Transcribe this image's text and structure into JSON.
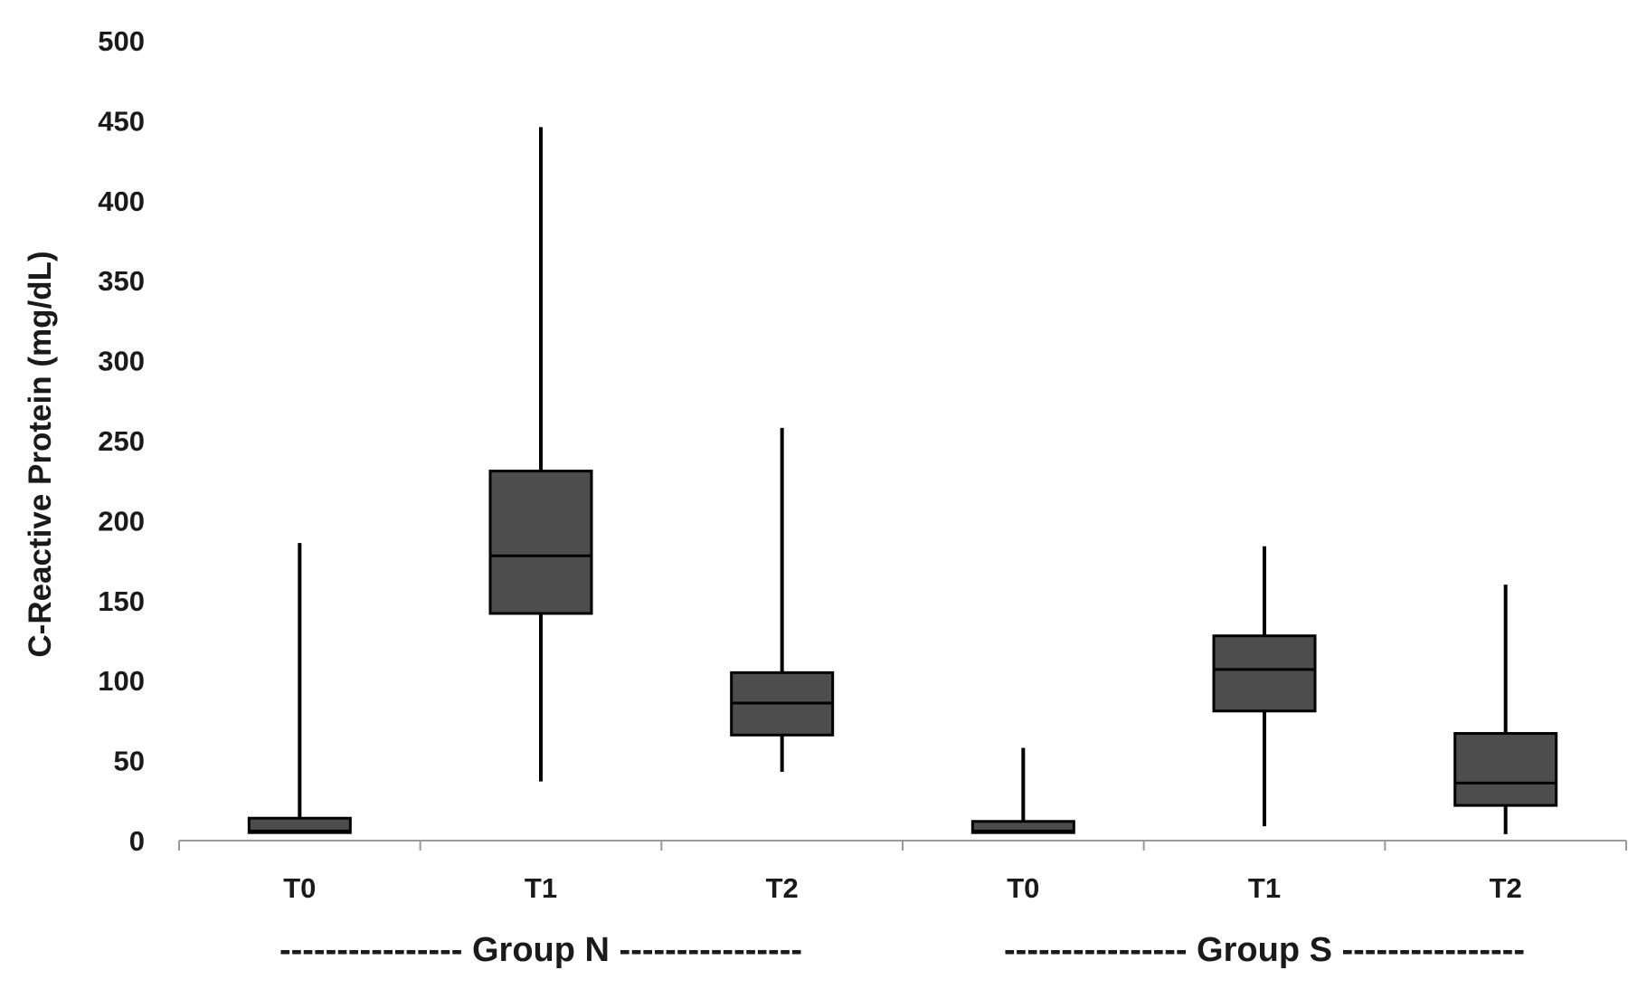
{
  "chart_data": {
    "type": "boxplot",
    "ylabel": "C-Reactive Protein (mg/dL)",
    "xlabel": "",
    "ylim": [
      0,
      500
    ],
    "yticks": [
      0,
      50,
      100,
      150,
      200,
      250,
      300,
      350,
      400,
      450,
      500
    ],
    "grid": false,
    "legend": "none",
    "box_color": "#4d4d4d",
    "line_color": "#000000",
    "categories": [
      "T0",
      "T1",
      "T2",
      "T0",
      "T1",
      "T2"
    ],
    "groups": [
      {
        "label": "---------------- Group N ----------------",
        "categories": [
          "T0",
          "T1",
          "T2"
        ]
      },
      {
        "label": "---------------- Group S ----------------",
        "categories": [
          "T0",
          "T1",
          "T2"
        ]
      }
    ],
    "boxes": [
      {
        "group": "Group N",
        "category": "T0",
        "min": 5,
        "q1": 5,
        "median": 6,
        "q3": 14,
        "max": 186
      },
      {
        "group": "Group N",
        "category": "T1",
        "min": 37,
        "q1": 142,
        "median": 178,
        "q3": 231,
        "max": 446
      },
      {
        "group": "Group N",
        "category": "T2",
        "min": 43,
        "q1": 66,
        "median": 86,
        "q3": 105,
        "max": 258
      },
      {
        "group": "Group S",
        "category": "T0",
        "min": 5,
        "q1": 5,
        "median": 6,
        "q3": 12,
        "max": 58
      },
      {
        "group": "Group S",
        "category": "T1",
        "min": 9,
        "q1": 81,
        "median": 107,
        "q3": 128,
        "max": 184
      },
      {
        "group": "Group S",
        "category": "T2",
        "min": 4,
        "q1": 22,
        "median": 36,
        "q3": 67,
        "max": 160
      }
    ]
  }
}
